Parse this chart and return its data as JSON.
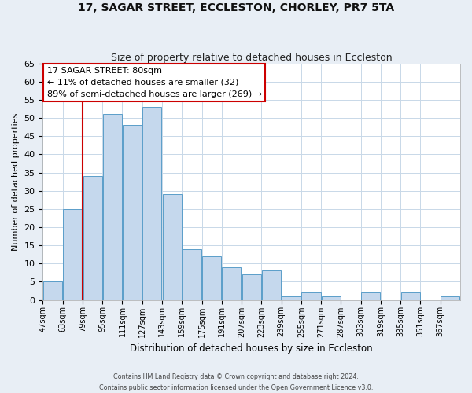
{
  "title": "17, SAGAR STREET, ECCLESTON, CHORLEY, PR7 5TA",
  "subtitle": "Size of property relative to detached houses in Eccleston",
  "xlabel": "Distribution of detached houses by size in Eccleston",
  "ylabel": "Number of detached properties",
  "bin_labels": [
    "47sqm",
    "63sqm",
    "79sqm",
    "95sqm",
    "111sqm",
    "127sqm",
    "143sqm",
    "159sqm",
    "175sqm",
    "191sqm",
    "207sqm",
    "223sqm",
    "239sqm",
    "255sqm",
    "271sqm",
    "287sqm",
    "303sqm",
    "319sqm",
    "335sqm",
    "351sqm",
    "367sqm"
  ],
  "bar_values": [
    5,
    25,
    34,
    51,
    48,
    53,
    29,
    14,
    12,
    9,
    7,
    8,
    1,
    2,
    1,
    0,
    2,
    0,
    2,
    0,
    1
  ],
  "bin_edges": [
    47,
    63,
    79,
    95,
    111,
    127,
    143,
    159,
    175,
    191,
    207,
    223,
    239,
    255,
    271,
    287,
    303,
    319,
    335,
    351,
    367,
    383
  ],
  "bar_color": "#c5d8ed",
  "bar_edge_color": "#5a9ec9",
  "vline_x": 79,
  "vline_color": "#cc0000",
  "ylim": [
    0,
    65
  ],
  "yticks": [
    0,
    5,
    10,
    15,
    20,
    25,
    30,
    35,
    40,
    45,
    50,
    55,
    60,
    65
  ],
  "annotation_title": "17 SAGAR STREET: 80sqm",
  "annotation_line1": "← 11% of detached houses are smaller (32)",
  "annotation_line2": "89% of semi-detached houses are larger (269) →",
  "annotation_box_color": "#ffffff",
  "annotation_box_edge": "#cc0000",
  "footer1": "Contains HM Land Registry data © Crown copyright and database right 2024.",
  "footer2": "Contains public sector information licensed under the Open Government Licence v3.0.",
  "bg_color": "#e8eef5",
  "plot_bg_color": "#ffffff",
  "grid_color": "#c8d8e8"
}
